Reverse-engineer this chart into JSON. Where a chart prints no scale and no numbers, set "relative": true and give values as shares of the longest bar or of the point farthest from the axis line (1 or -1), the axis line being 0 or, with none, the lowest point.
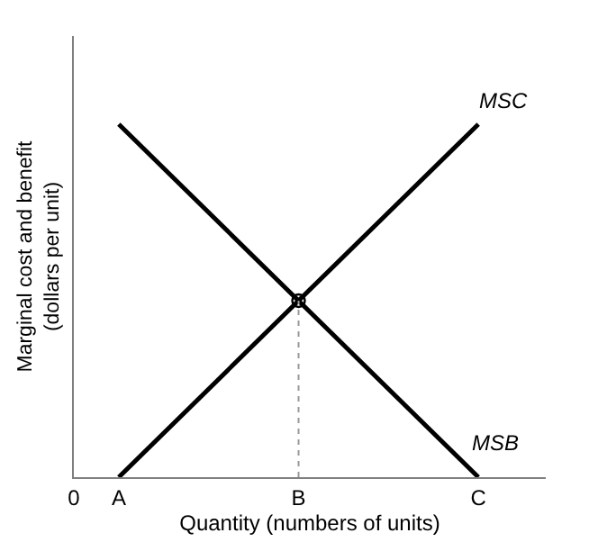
{
  "chart_data": {
    "type": "line",
    "relative": true,
    "xlabel": "Quantity (numbers of units)",
    "ylabel": "Marginal cost and benefit\n(dollars per unit)",
    "categories": [
      "0",
      "A",
      null,
      null,
      null,
      "B",
      null,
      null,
      null,
      "C",
      null
    ],
    "series": [
      {
        "name": "MSC",
        "color": "#000000",
        "values": [
          null,
          0,
          null,
          null,
          null,
          null,
          null,
          null,
          null,
          1,
          null
        ]
      },
      {
        "name": "MSB",
        "color": "#000000",
        "values": [
          null,
          1,
          null,
          null,
          null,
          null,
          null,
          null,
          null,
          0,
          null
        ]
      },
      {
        "type": "line",
        "color": "#999999",
        "line_style": "dotted",
        "x": [
          "B",
          "B"
        ],
        "values": [
          0,
          0.5
        ]
      },
      {
        "type": "scatter",
        "marker": "circle",
        "color": "#000000",
        "x": [
          "B"
        ],
        "values": [
          0.5
        ]
      }
    ]
  }
}
